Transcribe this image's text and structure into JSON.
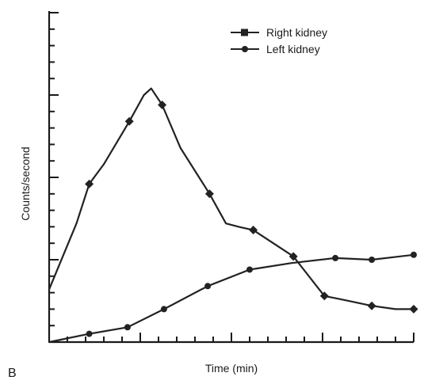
{
  "panel_label": "B",
  "chart_data": {
    "type": "line",
    "xlabel": "Time (min)",
    "ylabel": "Counts/second",
    "xlim": [
      0,
      20
    ],
    "ylim": [
      0,
      100
    ],
    "grid": false,
    "legend": {
      "position": "top-right",
      "entries": [
        "Right kidney",
        "Left kidney"
      ]
    },
    "series": [
      {
        "name": "Right kidney",
        "marker": "diamond",
        "points": [
          [
            0,
            16
          ],
          [
            1.5,
            36
          ],
          [
            2.2,
            48
          ],
          [
            3,
            54
          ],
          [
            4.4,
            67
          ],
          [
            5.2,
            75
          ],
          [
            5.6,
            77
          ],
          [
            6.2,
            72
          ],
          [
            7.2,
            59
          ],
          [
            8.8,
            45
          ],
          [
            9.7,
            36
          ],
          [
            10.4,
            35
          ],
          [
            11.2,
            34
          ],
          [
            13.4,
            26
          ],
          [
            15.1,
            14
          ],
          [
            16,
            13
          ],
          [
            17.7,
            11
          ],
          [
            19,
            10
          ],
          [
            20,
            10
          ]
        ],
        "marked_points": [
          [
            2.2,
            48
          ],
          [
            4.4,
            67
          ],
          [
            6.2,
            72
          ],
          [
            8.8,
            45
          ],
          [
            11.2,
            34
          ],
          [
            13.4,
            26
          ],
          [
            15.1,
            14
          ],
          [
            17.7,
            11
          ],
          [
            20,
            10
          ]
        ]
      },
      {
        "name": "Left kidney",
        "marker": "circle",
        "points": [
          [
            0,
            0
          ],
          [
            2.2,
            2.5
          ],
          [
            4.3,
            4.5
          ],
          [
            6.3,
            10
          ],
          [
            8.7,
            17
          ],
          [
            11,
            22
          ],
          [
            13.3,
            24
          ],
          [
            15.7,
            25.5
          ],
          [
            17.7,
            25
          ],
          [
            20,
            26.5
          ]
        ],
        "marked_points": [
          [
            2.2,
            2.5
          ],
          [
            4.3,
            4.5
          ],
          [
            6.3,
            10
          ],
          [
            8.7,
            17
          ],
          [
            11,
            22
          ],
          [
            15.7,
            25.5
          ],
          [
            17.7,
            25
          ],
          [
            20,
            26.5
          ]
        ]
      }
    ]
  }
}
